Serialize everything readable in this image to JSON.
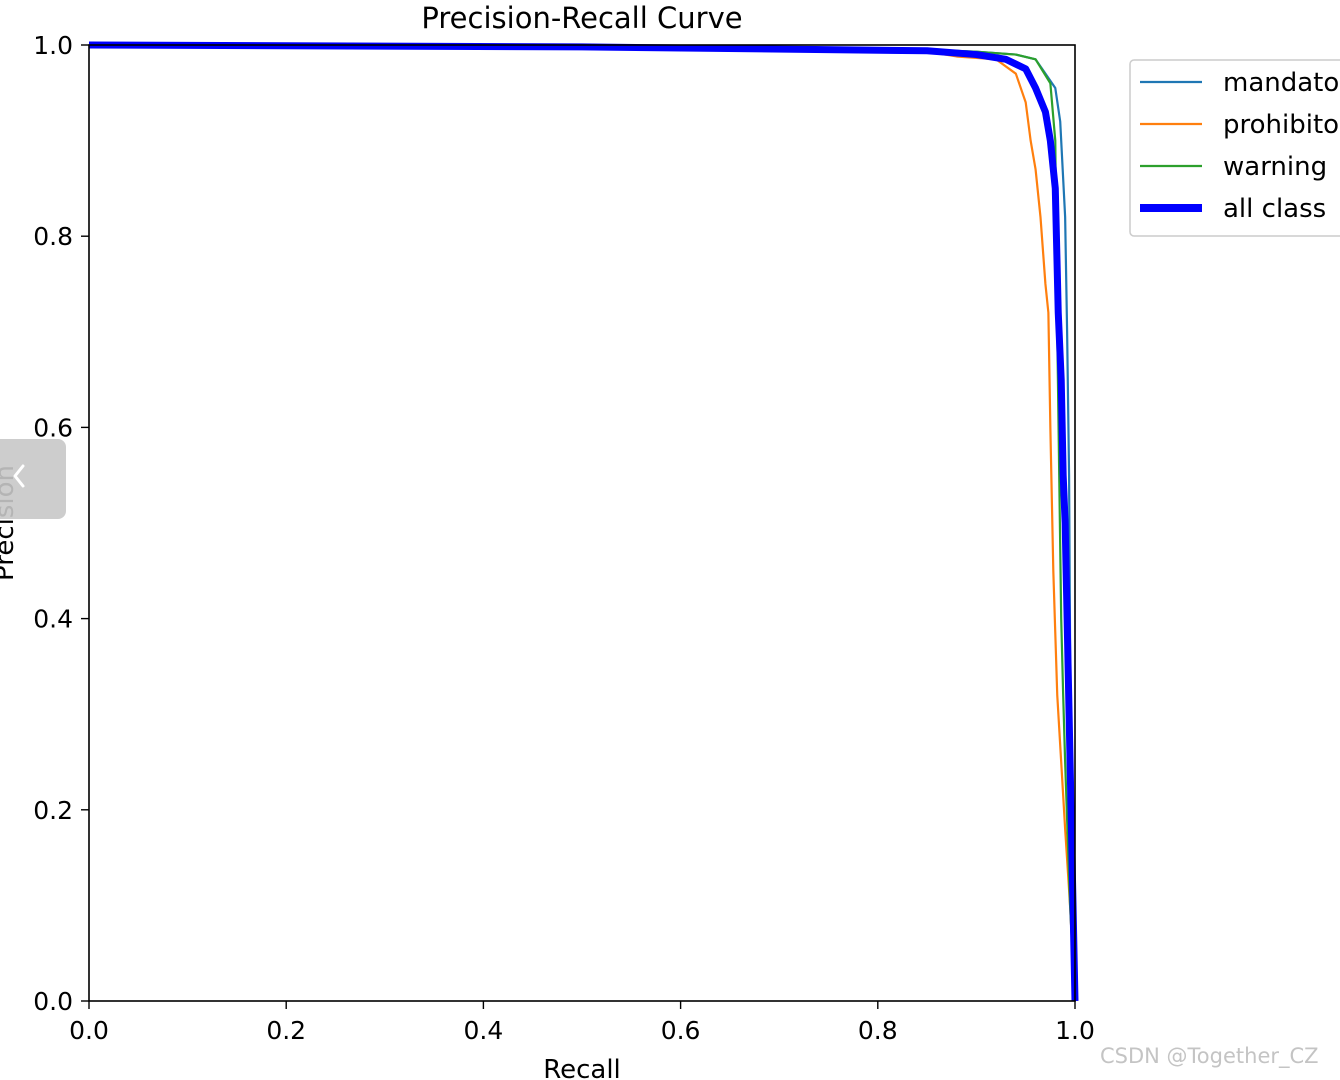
{
  "chart_data": {
    "type": "line",
    "title": "Precision-Recall Curve",
    "xlabel": "Recall",
    "ylabel": "Precision",
    "xlim": [
      0.0,
      1.0
    ],
    "ylim": [
      0.0,
      1.0
    ],
    "xticks": [
      "0.0",
      "0.2",
      "0.4",
      "0.6",
      "0.8",
      "1.0"
    ],
    "yticks": [
      "0.0",
      "0.2",
      "0.4",
      "0.6",
      "0.8",
      "1.0"
    ],
    "grid": false,
    "legend_position": "outside top-right",
    "series": [
      {
        "name": "mandatory",
        "legend_label": "mandato",
        "color": "#1f77b4",
        "emphasis": "normal",
        "x": [
          0.0,
          0.5,
          0.85,
          0.9,
          0.94,
          0.96,
          0.97,
          0.98,
          0.985,
          0.99,
          0.992,
          0.994,
          0.996,
          1.0
        ],
        "y": [
          1.0,
          0.998,
          0.995,
          0.993,
          0.99,
          0.985,
          0.97,
          0.955,
          0.92,
          0.82,
          0.7,
          0.55,
          0.2,
          0.0
        ]
      },
      {
        "name": "prohibitory",
        "legend_label": "prohibito",
        "color": "#ff7f0e",
        "emphasis": "normal",
        "x": [
          0.0,
          0.5,
          0.85,
          0.88,
          0.92,
          0.94,
          0.95,
          0.955,
          0.96,
          0.965,
          0.97,
          0.973,
          0.975,
          0.978,
          0.982,
          0.986,
          0.99,
          0.995,
          1.0
        ],
        "y": [
          1.0,
          0.998,
          0.993,
          0.988,
          0.985,
          0.97,
          0.94,
          0.9,
          0.87,
          0.82,
          0.75,
          0.72,
          0.6,
          0.45,
          0.32,
          0.25,
          0.18,
          0.1,
          0.0
        ]
      },
      {
        "name": "warning",
        "legend_label": "warning",
        "color": "#2ca02c",
        "emphasis": "normal",
        "x": [
          0.0,
          0.5,
          0.85,
          0.9,
          0.94,
          0.96,
          0.975,
          0.98,
          0.982,
          0.984,
          0.986,
          0.988,
          0.99,
          0.995,
          1.0
        ],
        "y": [
          1.0,
          0.998,
          0.995,
          0.993,
          0.99,
          0.985,
          0.96,
          0.9,
          0.7,
          0.55,
          0.4,
          0.32,
          0.25,
          0.1,
          0.0
        ]
      },
      {
        "name": "all classes",
        "legend_label": "all class",
        "color": "#0000ff",
        "emphasis": "bold",
        "x": [
          0.0,
          0.5,
          0.85,
          0.9,
          0.93,
          0.95,
          0.96,
          0.97,
          0.975,
          0.98,
          0.983,
          0.986,
          0.988,
          0.99,
          0.993,
          0.996,
          1.0
        ],
        "y": [
          1.0,
          0.998,
          0.994,
          0.99,
          0.985,
          0.975,
          0.955,
          0.93,
          0.9,
          0.85,
          0.72,
          0.65,
          0.55,
          0.5,
          0.35,
          0.2,
          0.0
        ]
      }
    ]
  },
  "ui": {
    "watermark": "CSDN @Together_CZ",
    "nav_icon": "chevron-left-icon"
  }
}
